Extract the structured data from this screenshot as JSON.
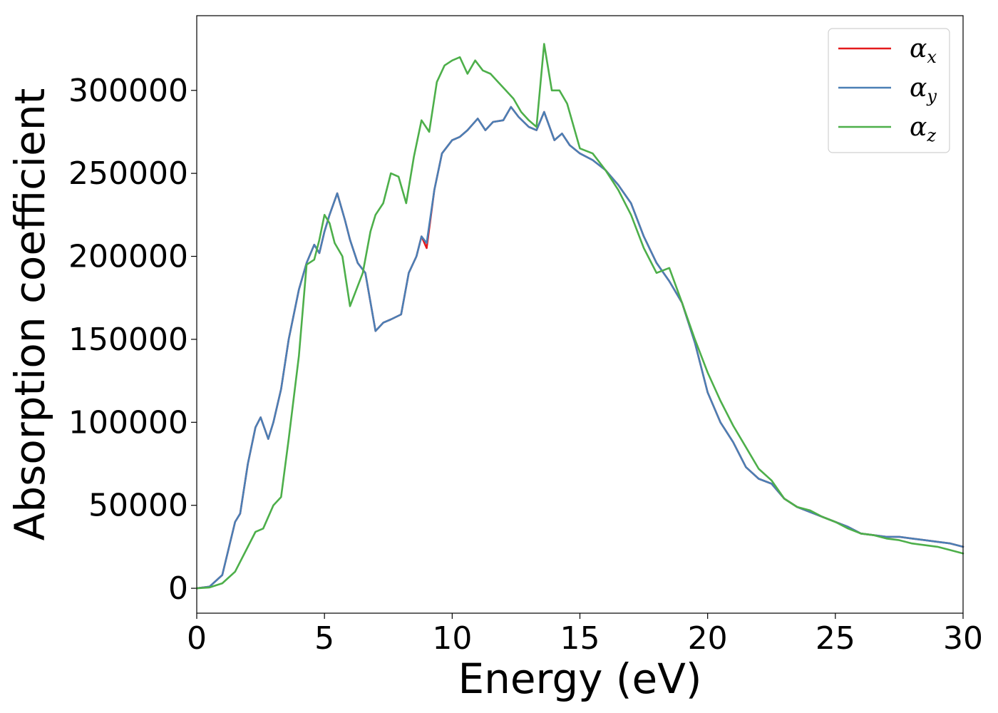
{
  "chart_data": {
    "type": "line",
    "xlabel": "Energy (eV)",
    "ylabel": "Absorption coefficient",
    "xlim": [
      0,
      30
    ],
    "ylim": [
      -15000,
      345000
    ],
    "xticks": [
      0,
      5,
      10,
      15,
      20,
      25,
      30
    ],
    "yticks": [
      0,
      50000,
      100000,
      150000,
      200000,
      250000,
      300000
    ],
    "grid": false,
    "legend_position": "upper-right",
    "series": [
      {
        "name": "α_x",
        "legend_base": "α",
        "legend_sub": "x",
        "color": "#e41a1c",
        "x": [
          0,
          0.5,
          1,
          1.5,
          1.7,
          2,
          2.3,
          2.5,
          2.8,
          3,
          3.3,
          3.6,
          4,
          4.3,
          4.6,
          4.8,
          5,
          5.2,
          5.5,
          5.8,
          6,
          6.3,
          6.6,
          7,
          7.3,
          7.6,
          8,
          8.3,
          8.6,
          8.8,
          9,
          9.3,
          9.6,
          10,
          10.3,
          10.6,
          11,
          11.3,
          11.6,
          12,
          12.3,
          12.6,
          13,
          13.3,
          13.6,
          14,
          14.3,
          14.6,
          15,
          15.5,
          16,
          16.5,
          17,
          17.5,
          18,
          18.5,
          19,
          19.5,
          20,
          20.5,
          21,
          21.5,
          22,
          22.5,
          23,
          23.5,
          24,
          24.5,
          25,
          25.5,
          26,
          26.5,
          27,
          27.5,
          28,
          28.5,
          29,
          29.5,
          30
        ],
        "y": [
          0,
          1000,
          8000,
          40000,
          45000,
          75000,
          97000,
          103000,
          90000,
          100000,
          120000,
          150000,
          180000,
          196000,
          207000,
          202000,
          215000,
          225000,
          238000,
          222000,
          210000,
          196000,
          190000,
          155000,
          160000,
          162000,
          165000,
          190000,
          200000,
          212000,
          205000,
          240000,
          262000,
          270000,
          272000,
          276000,
          283000,
          276000,
          281000,
          282000,
          290000,
          284000,
          278000,
          276000,
          287000,
          270000,
          274000,
          267000,
          262000,
          258000,
          252000,
          243000,
          232000,
          212000,
          196000,
          185000,
          172000,
          148000,
          118000,
          100000,
          88000,
          73000,
          66000,
          63000,
          54000,
          49000,
          46000,
          43000,
          40000,
          37000,
          33000,
          32000,
          31000,
          31000,
          30000,
          29000,
          28000,
          27000,
          25000
        ]
      },
      {
        "name": "α_y",
        "legend_base": "α",
        "legend_sub": "y",
        "color": "#4a7fb5",
        "x": [
          0,
          0.5,
          1,
          1.5,
          1.7,
          2,
          2.3,
          2.5,
          2.8,
          3,
          3.3,
          3.6,
          4,
          4.3,
          4.6,
          4.8,
          5,
          5.2,
          5.5,
          5.8,
          6,
          6.3,
          6.6,
          7,
          7.3,
          7.6,
          8,
          8.3,
          8.6,
          8.8,
          9,
          9.3,
          9.6,
          10,
          10.3,
          10.6,
          11,
          11.3,
          11.6,
          12,
          12.3,
          12.6,
          13,
          13.3,
          13.6,
          14,
          14.3,
          14.6,
          15,
          15.5,
          16,
          16.5,
          17,
          17.5,
          18,
          18.5,
          19,
          19.5,
          20,
          20.5,
          21,
          21.5,
          22,
          22.5,
          23,
          23.5,
          24,
          24.5,
          25,
          25.5,
          26,
          26.5,
          27,
          27.5,
          28,
          28.5,
          29,
          29.5,
          30
        ],
        "y": [
          0,
          1000,
          8000,
          40000,
          45000,
          75000,
          97000,
          103000,
          90000,
          100000,
          120000,
          150000,
          180000,
          196000,
          207000,
          202000,
          215000,
          225000,
          238000,
          222000,
          210000,
          196000,
          190000,
          155000,
          160000,
          162000,
          165000,
          190000,
          200000,
          212000,
          208000,
          240000,
          262000,
          270000,
          272000,
          276000,
          283000,
          276000,
          281000,
          282000,
          290000,
          284000,
          278000,
          276000,
          287000,
          270000,
          274000,
          267000,
          262000,
          258000,
          252000,
          243000,
          232000,
          212000,
          196000,
          185000,
          172000,
          148000,
          118000,
          100000,
          88000,
          73000,
          66000,
          63000,
          54000,
          49000,
          46000,
          43000,
          40000,
          37000,
          33000,
          32000,
          31000,
          31000,
          30000,
          29000,
          28000,
          27000,
          25000
        ]
      },
      {
        "name": "α_z",
        "legend_base": "α",
        "legend_sub": "z",
        "color": "#4daf4a",
        "x": [
          0,
          0.5,
          1,
          1.5,
          2,
          2.3,
          2.6,
          3,
          3.3,
          3.6,
          4,
          4.3,
          4.6,
          4.8,
          5,
          5.2,
          5.4,
          5.7,
          6,
          6.2,
          6.5,
          6.8,
          7,
          7.3,
          7.6,
          7.9,
          8.2,
          8.5,
          8.8,
          9.1,
          9.4,
          9.7,
          10,
          10.3,
          10.6,
          10.9,
          11.2,
          11.5,
          11.8,
          12.1,
          12.4,
          12.7,
          13,
          13.3,
          13.6,
          13.9,
          14.2,
          14.5,
          15,
          15.5,
          16,
          16.5,
          17,
          17.5,
          18,
          18.5,
          19,
          19.5,
          20,
          20.5,
          21,
          21.5,
          22,
          22.5,
          23,
          23.5,
          24,
          24.5,
          25,
          25.5,
          26,
          26.5,
          27,
          27.5,
          28,
          28.5,
          29,
          29.5,
          30
        ],
        "y": [
          0,
          500,
          3000,
          10000,
          25000,
          34000,
          36000,
          50000,
          55000,
          90000,
          140000,
          195000,
          198000,
          210000,
          225000,
          220000,
          208000,
          200000,
          170000,
          178000,
          190000,
          215000,
          225000,
          232000,
          250000,
          248000,
          232000,
          260000,
          282000,
          275000,
          305000,
          315000,
          318000,
          320000,
          310000,
          318000,
          312000,
          310000,
          305000,
          300000,
          295000,
          287000,
          282000,
          278000,
          328000,
          300000,
          300000,
          292000,
          265000,
          262000,
          252000,
          240000,
          225000,
          205000,
          190000,
          193000,
          172000,
          150000,
          130000,
          113000,
          98000,
          85000,
          72000,
          65000,
          54000,
          49000,
          47000,
          43000,
          40000,
          36000,
          33000,
          32000,
          30000,
          29000,
          27000,
          26000,
          25000,
          23000,
          21000
        ]
      }
    ]
  }
}
